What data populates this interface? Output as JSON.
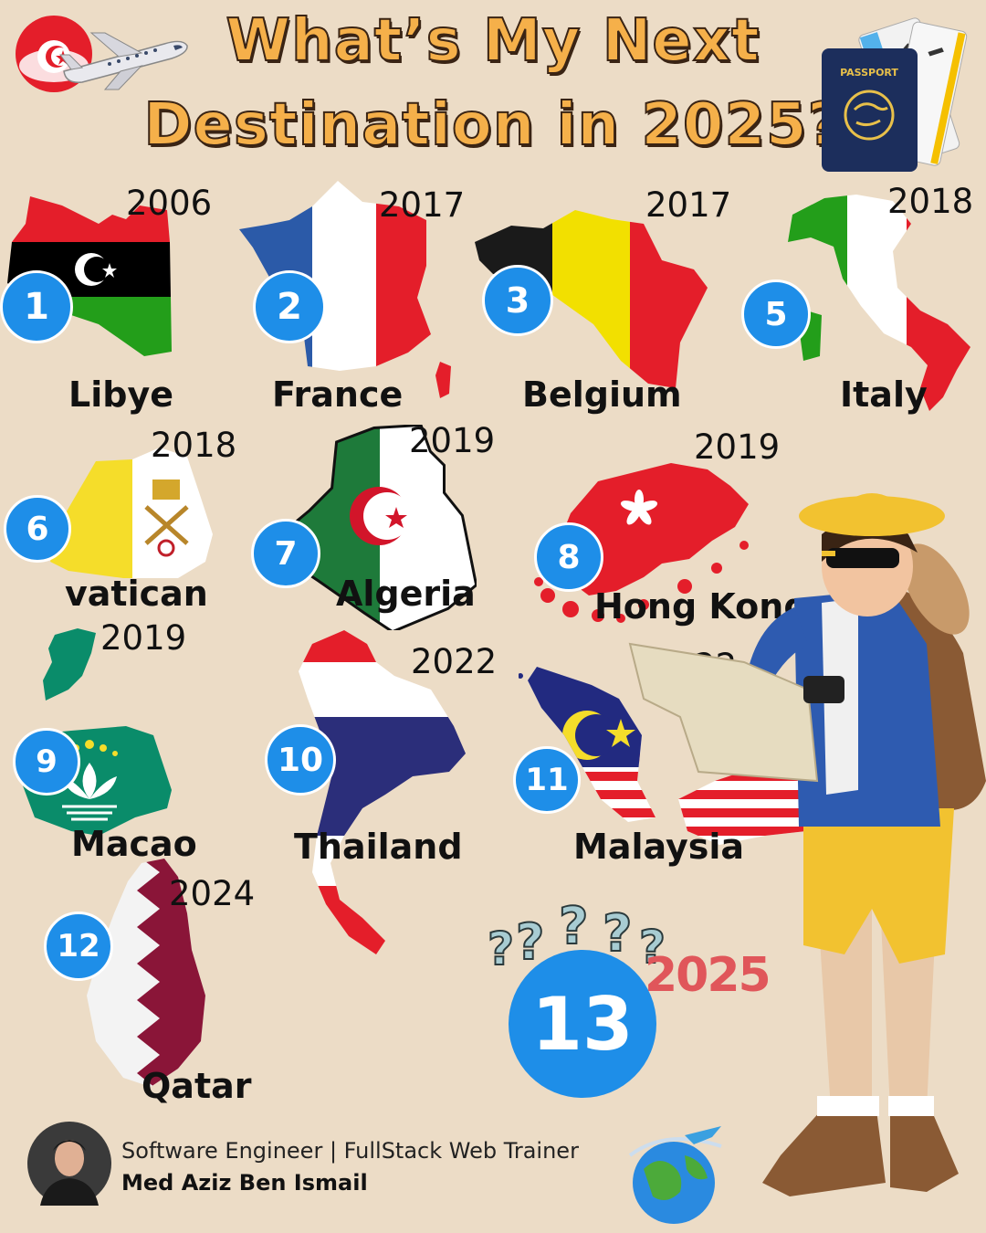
{
  "title": {
    "line1": "What’s My Next",
    "line2": "Destination in 2025?"
  },
  "destinations": [
    {
      "number": "1",
      "country": "Libye",
      "year": "2006"
    },
    {
      "number": "2",
      "country": "France",
      "year": "2017"
    },
    {
      "number": "3",
      "country": "Belgium",
      "year": "2017"
    },
    {
      "number": "5",
      "country": "Italy",
      "year": "2018"
    },
    {
      "number": "6",
      "country": "vatican",
      "year": "2018"
    },
    {
      "number": "7",
      "country": "Algeria",
      "year": "2019"
    },
    {
      "number": "8",
      "country": "Hong Kong",
      "year": "2019"
    },
    {
      "number": "9",
      "country": "Macao",
      "year": "2019"
    },
    {
      "number": "10",
      "country": "Thailand",
      "year": "2022"
    },
    {
      "number": "11",
      "country": "Malaysia",
      "year": "2022"
    },
    {
      "number": "12",
      "country": "Qatar",
      "year": "2024"
    }
  ],
  "next": {
    "number": "13",
    "year": "2025",
    "marks": "?"
  },
  "passport_label": "PASSPORT",
  "author": {
    "role": "Software Engineer | FullStack Web Trainer",
    "name": "Med Aziz Ben Ismail"
  },
  "colors": {
    "badge_blue": "#1e8ee8",
    "title_orange": "#f5b04a",
    "background": "#ecdcc6",
    "year_2025_red": "#e0565a"
  }
}
